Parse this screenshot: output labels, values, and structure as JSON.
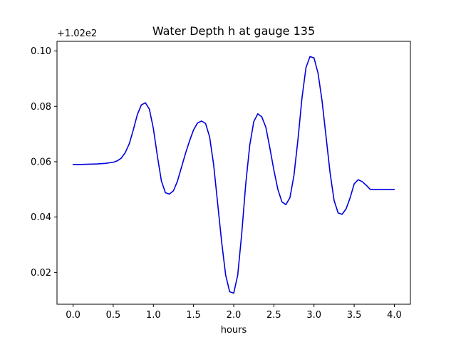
{
  "chart_data": {
    "type": "line",
    "title": "Water Depth h at gauge 135",
    "xlabel": "hours",
    "ylabel": "",
    "y_offset_label": "+1.02e2",
    "xlim": [
      -0.2,
      4.2
    ],
    "ylim": [
      0.0085,
      0.1035
    ],
    "x_ticks": [
      0.0,
      0.5,
      1.0,
      1.5,
      2.0,
      2.5,
      3.0,
      3.5,
      4.0
    ],
    "x_tick_labels": [
      "0.0",
      "0.5",
      "1.0",
      "1.5",
      "2.0",
      "2.5",
      "3.0",
      "3.5",
      "4.0"
    ],
    "y_ticks": [
      0.02,
      0.04,
      0.06,
      0.08,
      0.1
    ],
    "y_tick_labels": [
      "0.02",
      "0.04",
      "0.06",
      "0.08",
      "0.10"
    ],
    "grid": false,
    "series": [
      {
        "color": "#0000dd",
        "x": [
          0.0,
          0.1,
          0.2,
          0.3,
          0.4,
          0.5,
          0.55,
          0.6,
          0.65,
          0.7,
          0.75,
          0.8,
          0.85,
          0.9,
          0.95,
          1.0,
          1.05,
          1.1,
          1.15,
          1.2,
          1.25,
          1.3,
          1.35,
          1.4,
          1.45,
          1.5,
          1.55,
          1.6,
          1.65,
          1.7,
          1.75,
          1.8,
          1.85,
          1.9,
          1.95,
          2.0,
          2.05,
          2.1,
          2.15,
          2.2,
          2.25,
          2.3,
          2.35,
          2.4,
          2.45,
          2.5,
          2.55,
          2.6,
          2.65,
          2.7,
          2.75,
          2.8,
          2.85,
          2.9,
          2.95,
          3.0,
          3.05,
          3.1,
          3.15,
          3.2,
          3.25,
          3.3,
          3.35,
          3.4,
          3.45,
          3.5,
          3.55,
          3.6,
          3.65,
          3.7,
          3.75,
          3.8,
          3.85,
          3.9,
          3.95,
          4.0
        ],
        "y": [
          0.059,
          0.059,
          0.0591,
          0.0592,
          0.0594,
          0.0598,
          0.0603,
          0.0613,
          0.0633,
          0.0665,
          0.0715,
          0.077,
          0.0805,
          0.0813,
          0.079,
          0.072,
          0.062,
          0.053,
          0.0488,
          0.0483,
          0.0495,
          0.053,
          0.058,
          0.063,
          0.0675,
          0.0715,
          0.074,
          0.0747,
          0.0738,
          0.069,
          0.059,
          0.045,
          0.031,
          0.019,
          0.013,
          0.0125,
          0.019,
          0.034,
          0.052,
          0.066,
          0.0745,
          0.0773,
          0.0762,
          0.0725,
          0.065,
          0.057,
          0.05,
          0.0455,
          0.0445,
          0.047,
          0.055,
          0.068,
          0.083,
          0.094,
          0.098,
          0.0975,
          0.092,
          0.082,
          0.069,
          0.056,
          0.046,
          0.0415,
          0.041,
          0.043,
          0.047,
          0.052,
          0.0535,
          0.0528,
          0.0515,
          0.05,
          0.05,
          0.05,
          0.05,
          0.05,
          0.05,
          0.05
        ]
      }
    ]
  }
}
